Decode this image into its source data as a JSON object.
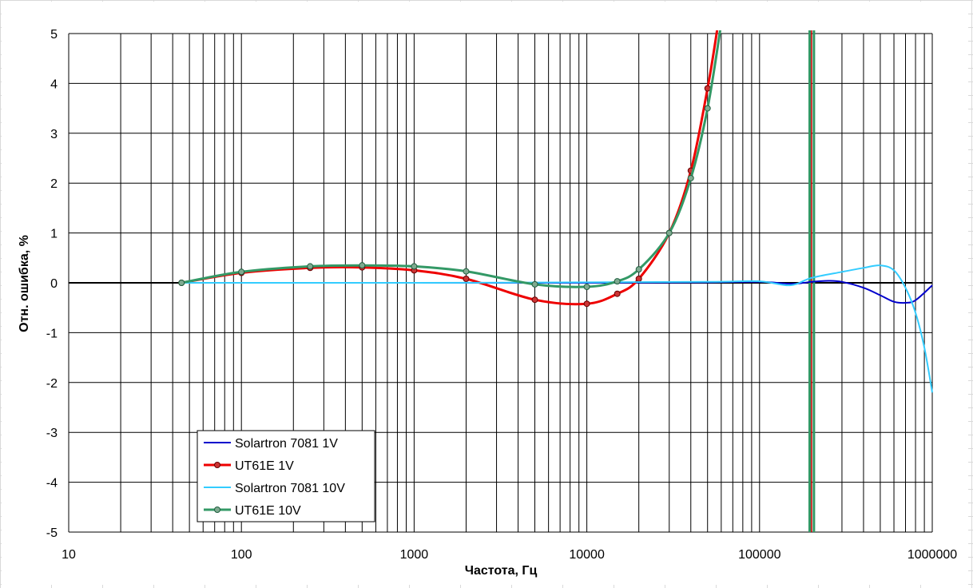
{
  "chart_data": {
    "type": "line",
    "title": "",
    "xlabel": "Частота, Гц",
    "ylabel": "Отн. ошибка, %",
    "x_scale": "log",
    "xlim": [
      10,
      1000000
    ],
    "ylim": [
      -5,
      5
    ],
    "x_ticks": [
      "10",
      "100",
      "1000",
      "10000",
      "100000",
      "1000000"
    ],
    "y_ticks": [
      "5",
      "4",
      "3",
      "2",
      "1",
      "0",
      "-1",
      "-2",
      "-3",
      "-4",
      "-5"
    ],
    "grid": true,
    "legend_position": "bottom-left",
    "series": [
      {
        "name": "Solartron 7081 1V",
        "color": "#0000cc",
        "marker": "none",
        "x": [
          150,
          1000,
          10000,
          50000,
          100000,
          150000,
          180000,
          200000,
          250000,
          300000,
          400000,
          500000,
          600000,
          700000,
          800000,
          1000000
        ],
        "y": [
          0,
          0,
          0,
          0.01,
          0.02,
          -0.02,
          0.0,
          0.02,
          0.04,
          0.02,
          -0.1,
          -0.25,
          -0.38,
          -0.4,
          -0.35,
          -0.05
        ]
      },
      {
        "name": "UT61E 1V",
        "color": "#ee0000",
        "marker": "circle",
        "x": [
          45,
          100,
          250,
          500,
          1000,
          2000,
          5000,
          10000,
          15000,
          20000,
          30000,
          40000,
          50000,
          57000
        ],
        "y": [
          0,
          0.2,
          0.3,
          0.31,
          0.25,
          0.08,
          -0.34,
          -0.42,
          -0.22,
          0.08,
          1.0,
          2.25,
          3.9,
          5.1
        ]
      },
      {
        "name": "Solartron 7081 10V",
        "color": "#33ccff",
        "marker": "none",
        "x": [
          45,
          100,
          1000,
          10000,
          50000,
          100000,
          150000,
          200000,
          300000,
          400000,
          500000,
          600000,
          700000,
          800000,
          900000,
          1000000
        ],
        "y": [
          0,
          0,
          0,
          0.01,
          0.02,
          0.03,
          -0.05,
          0.1,
          0.22,
          0.3,
          0.35,
          0.25,
          -0.1,
          -0.6,
          -1.3,
          -2.2
        ]
      },
      {
        "name": "UT61E 10V",
        "color": "#339966",
        "marker": "circle",
        "x": [
          45,
          100,
          250,
          500,
          1000,
          2000,
          5000,
          10000,
          15000,
          20000,
          30000,
          40000,
          50000,
          60000
        ],
        "y": [
          0,
          0.22,
          0.33,
          0.35,
          0.33,
          0.23,
          -0.03,
          -0.08,
          0.03,
          0.27,
          1.0,
          2.1,
          3.5,
          5.2
        ]
      }
    ]
  }
}
